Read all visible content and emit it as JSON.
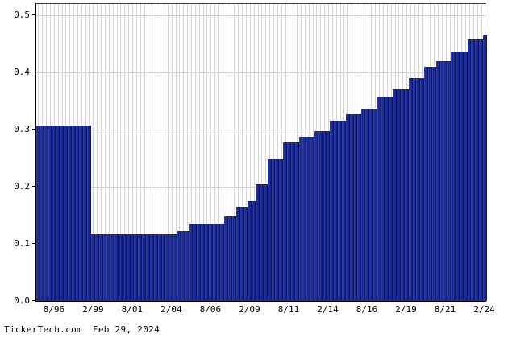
{
  "footer": {
    "source": "TickerTech.com",
    "date": "Feb 29, 2024"
  },
  "chart_data": {
    "type": "bar",
    "title": "",
    "xlabel": "",
    "ylabel": "",
    "ylim": [
      0,
      0.5
    ],
    "y_scale_top": 0.52,
    "grid": true,
    "bar_color": "#1e2c96",
    "grid_color": "#d6d6d6",
    "y_ticks": [
      "0.0",
      "0.1",
      "0.2",
      "0.3",
      "0.4",
      "0.5"
    ],
    "x_tick_labels": [
      "8/96",
      "2/99",
      "8/01",
      "2/04",
      "8/06",
      "2/09",
      "8/11",
      "2/14",
      "8/16",
      "2/19",
      "8/21",
      "2/24"
    ],
    "x_tick_bar_indices": [
      4,
      14,
      24,
      34,
      44,
      54,
      64,
      74,
      84,
      94,
      104,
      114
    ],
    "x_frequency": "quarterly",
    "values": [
      0.3075,
      0.3075,
      0.3075,
      0.3075,
      0.3075,
      0.3075,
      0.3075,
      0.3075,
      0.3075,
      0.3075,
      0.3075,
      0.3075,
      0.3075,
      0.3075,
      0.1175,
      0.1175,
      0.1175,
      0.1175,
      0.1175,
      0.1175,
      0.1175,
      0.1175,
      0.1175,
      0.1175,
      0.1175,
      0.1175,
      0.1175,
      0.1175,
      0.1175,
      0.1175,
      0.1175,
      0.1175,
      0.1175,
      0.1175,
      0.1175,
      0.1175,
      0.1225,
      0.1225,
      0.1225,
      0.135,
      0.135,
      0.135,
      0.135,
      0.135,
      0.135,
      0.135,
      0.135,
      0.135,
      0.1475,
      0.1475,
      0.1475,
      0.165,
      0.165,
      0.165,
      0.175,
      0.175,
      0.205,
      0.205,
      0.205,
      0.2475,
      0.2475,
      0.2475,
      0.2475,
      0.2775,
      0.2775,
      0.2775,
      0.2775,
      0.2875,
      0.2875,
      0.2875,
      0.2875,
      0.2975,
      0.2975,
      0.2975,
      0.2975,
      0.315,
      0.315,
      0.315,
      0.315,
      0.3275,
      0.3275,
      0.3275,
      0.3275,
      0.3375,
      0.3375,
      0.3375,
      0.3375,
      0.3575,
      0.3575,
      0.3575,
      0.3575,
      0.37,
      0.37,
      0.37,
      0.37,
      0.39,
      0.39,
      0.39,
      0.39,
      0.41,
      0.41,
      0.41,
      0.42,
      0.42,
      0.42,
      0.42,
      0.4375,
      0.4375,
      0.4375,
      0.4375,
      0.4575,
      0.4575,
      0.4575,
      0.4575,
      0.465
    ]
  }
}
